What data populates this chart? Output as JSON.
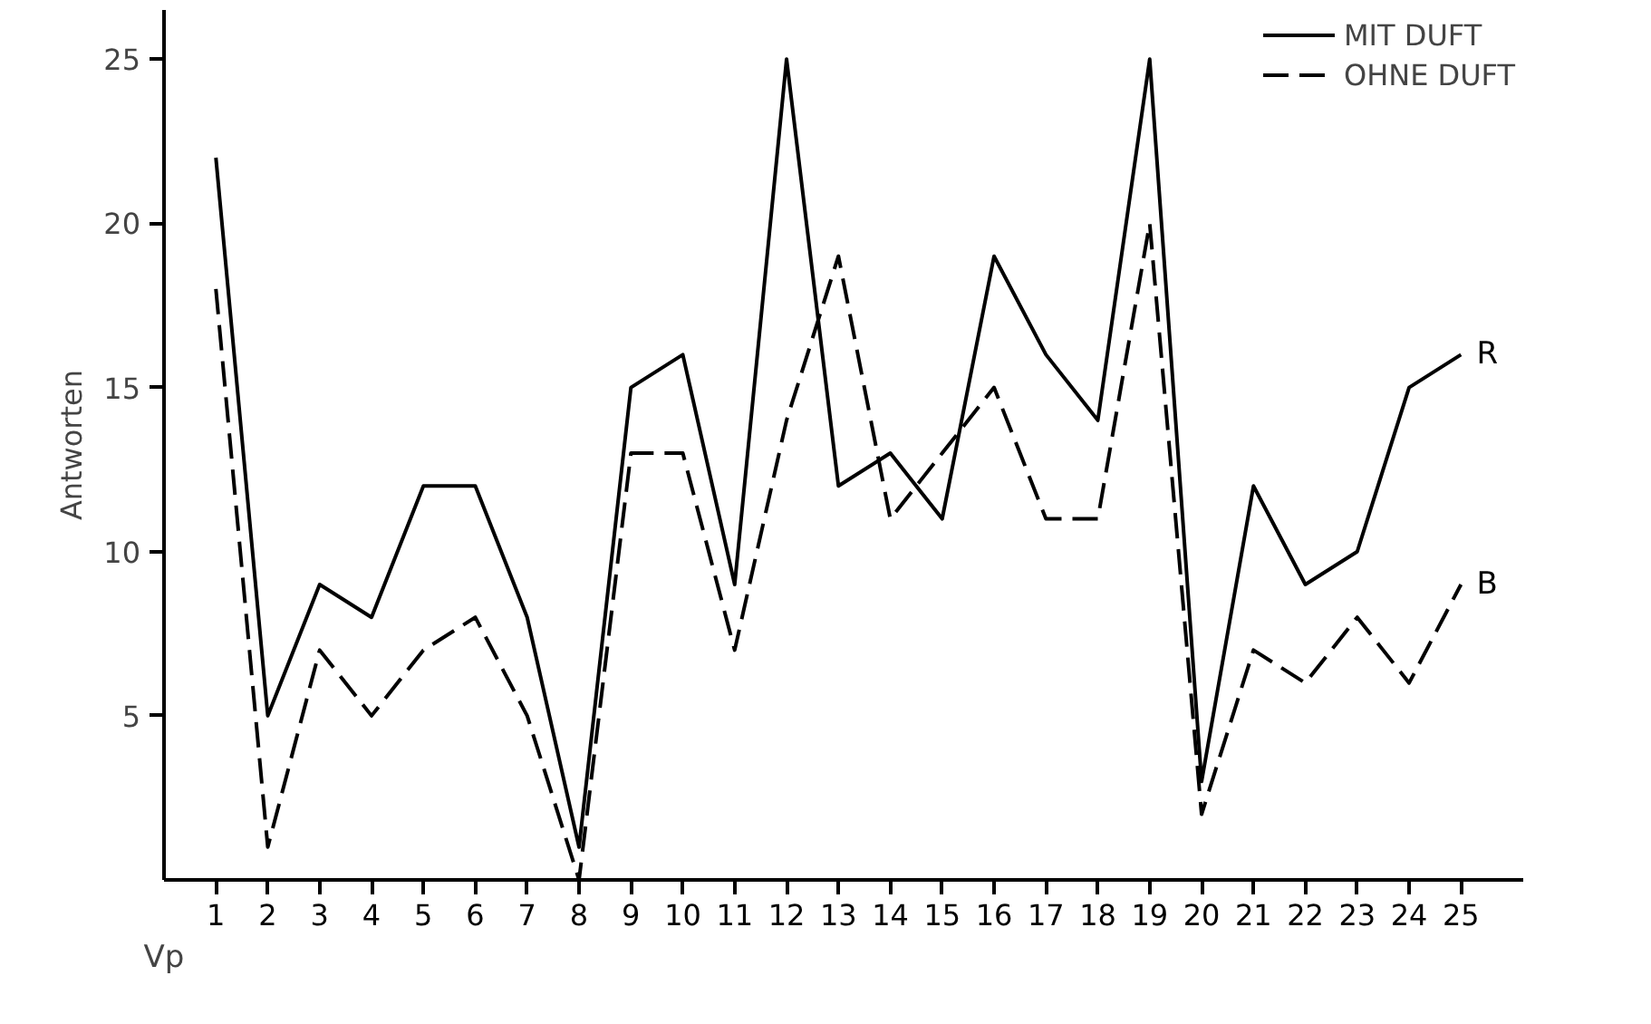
{
  "chart_data": {
    "type": "line",
    "xlabel": "Vp",
    "ylabel": "Antworten",
    "x": [
      1,
      2,
      3,
      4,
      5,
      6,
      7,
      8,
      9,
      10,
      11,
      12,
      13,
      14,
      15,
      16,
      17,
      18,
      19,
      20,
      21,
      22,
      23,
      24,
      25
    ],
    "xlim": [
      0,
      26.2
    ],
    "xticks": [
      1,
      2,
      3,
      4,
      5,
      6,
      7,
      8,
      9,
      10,
      11,
      12,
      13,
      14,
      15,
      16,
      17,
      18,
      19,
      20,
      21,
      22,
      23,
      24,
      25
    ],
    "ylim": [
      0,
      26.5
    ],
    "yticks": [
      5,
      10,
      15,
      20,
      25
    ],
    "series": [
      {
        "name": "MIT DUFT",
        "color": "#000000",
        "line_style": "solid",
        "values": [
          22,
          5,
          9,
          8,
          12,
          12,
          8,
          1,
          15,
          16,
          9,
          25,
          12,
          13,
          11,
          19,
          16,
          14,
          25,
          3,
          12,
          9,
          10,
          15,
          16
        ]
      },
      {
        "name": "OHNE DUFT",
        "color": "#000000",
        "line_style": "dashed",
        "values": [
          18,
          1,
          7,
          5,
          7,
          8,
          5,
          0,
          13,
          13,
          7,
          14,
          19,
          11,
          13,
          15,
          11,
          11,
          20,
          2,
          7,
          6,
          8,
          6,
          9
        ]
      }
    ],
    "annotations": [
      {
        "text": "R",
        "x": 25,
        "y": 16
      },
      {
        "text": "B",
        "x": 25,
        "y": 9
      }
    ],
    "legend": "top right",
    "grid": false
  }
}
